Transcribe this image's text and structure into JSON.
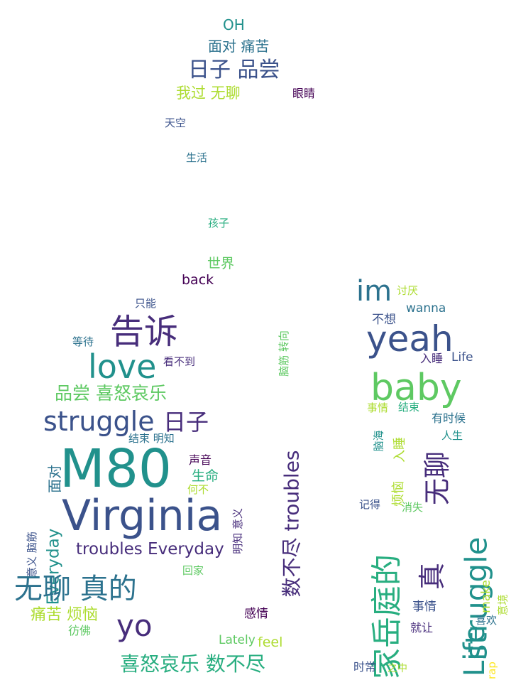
{
  "colors": {
    "background": "#ffffff",
    "palette": [
      "#440154",
      "#472d7b",
      "#3b528b",
      "#2c728e",
      "#21918c",
      "#28ae80",
      "#5ec962",
      "#addc30",
      "#fde725"
    ]
  },
  "words": [
    {
      "text": "OH",
      "color": "#21918c"
    },
    {
      "text": "面对 痛苦",
      "color": "#2c728e"
    },
    {
      "text": "日子 品尝",
      "color": "#3b528b"
    },
    {
      "text": "我过 无聊",
      "color": "#addc30"
    },
    {
      "text": "眼睛",
      "color": "#440154"
    },
    {
      "text": "天空",
      "color": "#3b528b"
    },
    {
      "text": "生活",
      "color": "#2c728e"
    },
    {
      "text": "孩子",
      "color": "#28ae80"
    },
    {
      "text": "世界",
      "color": "#5ec962"
    },
    {
      "text": "back",
      "color": "#440154"
    },
    {
      "text": "只能",
      "color": "#3b528b"
    },
    {
      "text": "告诉",
      "color": "#472d7b"
    },
    {
      "text": "等待",
      "color": "#2c728e"
    },
    {
      "text": "love",
      "color": "#21918c"
    },
    {
      "text": "看不到",
      "color": "#472d7b"
    },
    {
      "text": "品尝 喜怒哀乐",
      "color": "#5ec962"
    },
    {
      "text": "struggle",
      "color": "#3b528b"
    },
    {
      "text": "日子",
      "color": "#472d7b"
    },
    {
      "text": "结束 明知",
      "color": "#2c728e"
    },
    {
      "text": "M80",
      "color": "#21918c"
    },
    {
      "text": "声音",
      "color": "#440154"
    },
    {
      "text": "生命",
      "color": "#28ae80"
    },
    {
      "text": "何不",
      "color": "#addc30"
    },
    {
      "text": "Virginia",
      "color": "#3b528b"
    },
    {
      "text": "troubles Everyday",
      "color": "#472d7b"
    },
    {
      "text": "面对",
      "color": "#2c728e"
    },
    {
      "text": "Everyday",
      "color": "#21918c"
    },
    {
      "text": "意义 脑筋",
      "color": "#3b528b"
    },
    {
      "text": "明知 意义",
      "color": "#472d7b"
    },
    {
      "text": "无聊 真的",
      "color": "#2c728e"
    },
    {
      "text": "回家",
      "color": "#5ec962"
    },
    {
      "text": "痛苦 烦恼",
      "color": "#addc30"
    },
    {
      "text": "彷佛",
      "color": "#5ec962"
    },
    {
      "text": "yo",
      "color": "#472d7b"
    },
    {
      "text": "感情",
      "color": "#440154"
    },
    {
      "text": "Lately",
      "color": "#5ec962"
    },
    {
      "text": "feel",
      "color": "#addc30"
    },
    {
      "text": "喜怒哀乐 数不尽",
      "color": "#28ae80"
    },
    {
      "text": "数不尽 troubles",
      "color": "#472d7b"
    },
    {
      "text": "脑筋 转向",
      "color": "#5ec962"
    },
    {
      "text": "im",
      "color": "#2c728e"
    },
    {
      "text": "讨厌",
      "color": "#addc30"
    },
    {
      "text": "不想",
      "color": "#3b528b"
    },
    {
      "text": "wanna",
      "color": "#2c728e"
    },
    {
      "text": "yeah",
      "color": "#3b528b"
    },
    {
      "text": "入睡",
      "color": "#472d7b"
    },
    {
      "text": "Life",
      "color": "#3b528b"
    },
    {
      "text": "baby",
      "color": "#5ec962"
    },
    {
      "text": "事情",
      "color": "#addc30"
    },
    {
      "text": "结束",
      "color": "#28ae80"
    },
    {
      "text": "有时候",
      "color": "#2c728e"
    },
    {
      "text": "人生",
      "color": "#21918c"
    },
    {
      "text": "脑海",
      "color": "#21918c"
    },
    {
      "text": "入睡",
      "color": "#addc30"
    },
    {
      "text": "无聊",
      "color": "#472d7b"
    },
    {
      "text": "烦恼",
      "color": "#addc30"
    },
    {
      "text": "struggle",
      "color": "#21918c"
    },
    {
      "text": "记得",
      "color": "#3b528b"
    },
    {
      "text": "消失",
      "color": "#5ec962"
    },
    {
      "text": "家岳庭的",
      "color": "#28ae80"
    },
    {
      "text": "真",
      "color": "#472d7b"
    },
    {
      "text": "make",
      "color": "#addc30"
    },
    {
      "text": "意境",
      "color": "#addc30"
    },
    {
      "text": "事情",
      "color": "#3b528b"
    },
    {
      "text": "就让",
      "color": "#472d7b"
    },
    {
      "text": "Life",
      "color": "#21918c"
    },
    {
      "text": "喜欢",
      "color": "#2c728e"
    },
    {
      "text": "rap",
      "color": "#fde725"
    },
    {
      "text": "时常",
      "color": "#3b528b"
    },
    {
      "text": "之中",
      "color": "#addc30"
    }
  ]
}
